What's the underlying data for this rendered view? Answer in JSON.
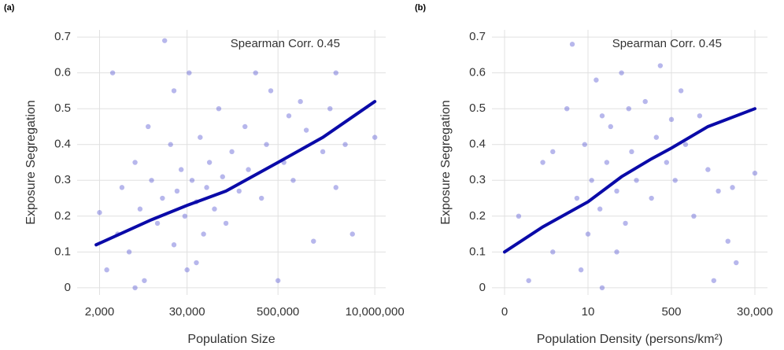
{
  "chart_data": [
    {
      "type": "scatter",
      "panel_label": "(a)",
      "annotation": "Spearman Corr. 0.45",
      "xlabel": "Population Size",
      "ylabel": "Exposure Segregation",
      "xscale": "log",
      "xlim": [
        1000,
        14000000
      ],
      "xticks": [
        {
          "value": 2000,
          "label": "2,000"
        },
        {
          "value": 30000,
          "label": "30,000"
        },
        {
          "value": 500000,
          "label": "500,000"
        },
        {
          "value": 10000000,
          "label": "10,000,000"
        }
      ],
      "ylim": [
        -0.02,
        0.72
      ],
      "yticks": [
        0.0,
        0.1,
        0.2,
        0.3,
        0.4,
        0.5,
        0.6,
        0.7
      ],
      "grid": true,
      "series": [
        {
          "kind": "points",
          "color": "#4a4ad0",
          "x": [
            2000,
            2500,
            3000,
            3500,
            4000,
            5000,
            6000,
            7000,
            8000,
            9000,
            10000,
            12000,
            14000,
            15000,
            18000,
            20000,
            22000,
            25000,
            28000,
            30000,
            32000,
            35000,
            40000,
            45000,
            50000,
            55000,
            60000,
            70000,
            80000,
            90000,
            100000,
            120000,
            150000,
            180000,
            200000,
            250000,
            300000,
            350000,
            400000,
            500000,
            600000,
            700000,
            800000,
            1000000,
            1200000,
            1500000,
            2000000,
            2500000,
            3000000,
            4000000,
            5000000,
            10000000,
            6000,
            20000,
            40000,
            3000000
          ],
          "values": [
            0.21,
            0.05,
            0.6,
            0.15,
            0.28,
            0.1,
            0.35,
            0.22,
            0.02,
            0.45,
            0.3,
            0.18,
            0.25,
            0.69,
            0.4,
            0.12,
            0.27,
            0.33,
            0.2,
            0.05,
            0.6,
            0.3,
            0.24,
            0.42,
            0.15,
            0.28,
            0.35,
            0.22,
            0.5,
            0.31,
            0.18,
            0.38,
            0.27,
            0.45,
            0.33,
            0.6,
            0.25,
            0.4,
            0.55,
            0.02,
            0.35,
            0.48,
            0.3,
            0.52,
            0.44,
            0.13,
            0.38,
            0.5,
            0.6,
            0.4,
            0.15,
            0.42,
            0.0,
            0.55,
            0.07,
            0.28
          ]
        },
        {
          "kind": "line",
          "color": "#0a0aa8",
          "x": [
            1800,
            10000,
            30000,
            100000,
            500000,
            2000000,
            10000000
          ],
          "values": [
            0.12,
            0.19,
            0.23,
            0.27,
            0.35,
            0.42,
            0.52
          ]
        }
      ]
    },
    {
      "type": "scatter",
      "panel_label": "(b)",
      "annotation": "Spearman Corr. 0.45",
      "xlabel": "Population Density (persons/km²)",
      "ylabel": "Exposure Segregation",
      "xscale": "symlog",
      "xlim": [
        0,
        30000
      ],
      "xticks": [
        0,
        10,
        500,
        {
          "value": 30000,
          "label": "30,000"
        }
      ],
      "ylim": [
        -0.02,
        0.72
      ],
      "yticks": [
        0.0,
        0.1,
        0.2,
        0.3,
        0.4,
        0.5,
        0.6,
        0.7
      ],
      "grid": true,
      "series": [
        {
          "kind": "points",
          "color": "#4a4ad0",
          "x": [
            0.5,
            1,
            2,
            3,
            5,
            6,
            7,
            8,
            9,
            10,
            12,
            15,
            18,
            20,
            25,
            30,
            40,
            50,
            60,
            80,
            100,
            150,
            200,
            250,
            300,
            400,
            500,
            600,
            800,
            1000,
            1500,
            2000,
            3000,
            5000,
            8000,
            10000,
            30000,
            12000,
            4000,
            20,
            40,
            3,
            70
          ],
          "values": [
            0.2,
            0.02,
            0.35,
            0.1,
            0.5,
            0.68,
            0.25,
            0.05,
            0.4,
            0.15,
            0.3,
            0.58,
            0.22,
            0.0,
            0.35,
            0.45,
            0.27,
            0.6,
            0.18,
            0.38,
            0.3,
            0.52,
            0.25,
            0.42,
            0.62,
            0.35,
            0.47,
            0.3,
            0.55,
            0.4,
            0.2,
            0.48,
            0.33,
            0.27,
            0.13,
            0.28,
            0.32,
            0.07,
            0.02,
            0.48,
            0.1,
            0.38,
            0.5
          ]
        },
        {
          "kind": "line",
          "color": "#0a0aa8",
          "x": [
            0,
            2,
            10,
            50,
            200,
            500,
            3000,
            30000
          ],
          "values": [
            0.1,
            0.17,
            0.24,
            0.31,
            0.36,
            0.39,
            0.45,
            0.5
          ]
        }
      ]
    }
  ]
}
